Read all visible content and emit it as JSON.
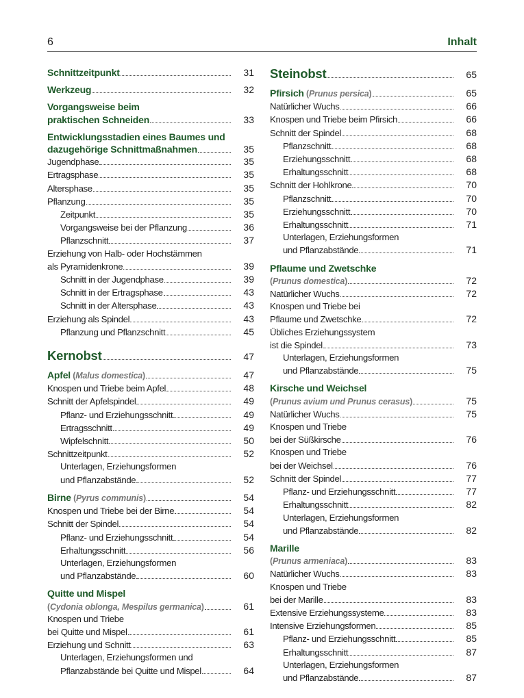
{
  "header": {
    "page_number": "6",
    "title": "Inhalt"
  },
  "colors": {
    "accent": "#1f5a2a",
    "latin": "#777777"
  },
  "columns": [
    [
      {
        "t": "h2",
        "lines": [
          "Schnittzeitpunkt"
        ],
        "p": "31"
      },
      {
        "t": "h2",
        "lines": [
          "Werkzeug"
        ],
        "p": "32"
      },
      {
        "t": "h2",
        "lines": [
          "Vorgangsweise beim",
          "praktischen Schneiden"
        ],
        "p": "33"
      },
      {
        "t": "h2",
        "lines": [
          "Entwicklungsstadien eines Baumes und",
          "dazugehörige Schnittmaßnahmen"
        ],
        "p": "35"
      },
      {
        "t": "n",
        "lines": [
          "Jugendphase"
        ],
        "p": "35"
      },
      {
        "t": "n",
        "lines": [
          "Ertragsphase"
        ],
        "p": "35"
      },
      {
        "t": "n",
        "lines": [
          "Altersphase"
        ],
        "p": "35"
      },
      {
        "t": "n",
        "lines": [
          "Pflanzung"
        ],
        "p": "35"
      },
      {
        "t": "i",
        "lines": [
          "Zeitpunkt"
        ],
        "p": "35"
      },
      {
        "t": "i",
        "lines": [
          "Vorgangsweise bei der Pflanzung"
        ],
        "p": "36"
      },
      {
        "t": "i",
        "lines": [
          "Pflanzschnitt"
        ],
        "p": "37"
      },
      {
        "t": "n",
        "lines": [
          "Erziehung von Halb- oder Hochstämmen",
          "als Pyramidenkrone"
        ],
        "p": "39"
      },
      {
        "t": "i",
        "lines": [
          "Schnitt in der Jugendphase"
        ],
        "p": "39"
      },
      {
        "t": "i",
        "lines": [
          "Schnitt in der Ertragsphase"
        ],
        "p": "43"
      },
      {
        "t": "i",
        "lines": [
          "Schnitt in der Altersphase"
        ],
        "p": "43"
      },
      {
        "t": "n",
        "lines": [
          "Erziehung als Spindel"
        ],
        "p": "43"
      },
      {
        "t": "i",
        "lines": [
          "Pflanzung und Pflanzschnitt"
        ],
        "p": "45"
      },
      {
        "t": "h1",
        "lines": [
          "Kernobst"
        ],
        "p": "47"
      },
      {
        "t": "h2",
        "lines": [
          "Apfel"
        ],
        "latin": "Malus domestica",
        "p": "47"
      },
      {
        "t": "n",
        "lines": [
          "Knospen und Triebe beim Apfel"
        ],
        "p": "48"
      },
      {
        "t": "n",
        "lines": [
          "Schnitt der Apfelspindel"
        ],
        "p": "49"
      },
      {
        "t": "i",
        "lines": [
          "Pflanz- und Erziehungsschnitt"
        ],
        "p": "49"
      },
      {
        "t": "i",
        "lines": [
          "Ertragsschnitt"
        ],
        "p": "49"
      },
      {
        "t": "i",
        "lines": [
          "Wipfelschnitt"
        ],
        "p": "50"
      },
      {
        "t": "n",
        "lines": [
          "Schnittzeitpunkt"
        ],
        "p": "52"
      },
      {
        "t": "i",
        "lines": [
          "Unterlagen, Erziehungsformen",
          "und Pflanzabstände"
        ],
        "p": "52"
      },
      {
        "t": "h2",
        "lines": [
          "Birne"
        ],
        "latin": "Pyrus communis",
        "p": "54"
      },
      {
        "t": "n",
        "lines": [
          "Knospen und Triebe bei der Birne"
        ],
        "p": "54"
      },
      {
        "t": "n",
        "lines": [
          "Schnitt der Spindel"
        ],
        "p": "54"
      },
      {
        "t": "i",
        "lines": [
          "Pflanz- und Erziehungsschnitt"
        ],
        "p": "54"
      },
      {
        "t": "i",
        "lines": [
          "Erhaltungsschnitt"
        ],
        "p": "56"
      },
      {
        "t": "i",
        "lines": [
          "Unterlagen, Erziehungsformen",
          "und Pflanzabstände"
        ],
        "p": "60"
      },
      {
        "t": "h2",
        "lines": [
          "Quitte und Mispel"
        ]
      },
      {
        "t": "l",
        "lines": [],
        "latin": "Cydonia oblonga, Mespilus germanica",
        "p": "61"
      },
      {
        "t": "n",
        "lines": [
          "Knospen und Triebe",
          "bei Quitte und Mispel"
        ],
        "p": "61"
      },
      {
        "t": "n",
        "lines": [
          "Erziehung und Schnitt"
        ],
        "p": "63"
      },
      {
        "t": "i",
        "lines": [
          "Unterlagen, Erziehungsformen und",
          "Pflanzabstände bei Quitte und Mispel"
        ],
        "p": "64"
      }
    ],
    [
      {
        "t": "h1",
        "lines": [
          "Steinobst"
        ],
        "p": "65"
      },
      {
        "t": "h2",
        "lines": [
          "Pfirsich"
        ],
        "latin": "Prunus persica",
        "p": "65"
      },
      {
        "t": "n",
        "lines": [
          "Natürlicher Wuchs"
        ],
        "p": "66"
      },
      {
        "t": "n",
        "lines": [
          "Knospen und Triebe beim Pfirsich"
        ],
        "p": "66"
      },
      {
        "t": "n",
        "lines": [
          "Schnitt der Spindel"
        ],
        "p": "68"
      },
      {
        "t": "i",
        "lines": [
          "Pflanzschnitt"
        ],
        "p": "68"
      },
      {
        "t": "i",
        "lines": [
          "Erziehungsschnitt"
        ],
        "p": "68"
      },
      {
        "t": "i",
        "lines": [
          "Erhaltungsschnitt"
        ],
        "p": "68"
      },
      {
        "t": "n",
        "lines": [
          "Schnitt der Hohlkrone"
        ],
        "p": "70"
      },
      {
        "t": "i",
        "lines": [
          "Pflanzschnitt"
        ],
        "p": "70"
      },
      {
        "t": "i",
        "lines": [
          "Erziehungsschnitt"
        ],
        "p": "70"
      },
      {
        "t": "i",
        "lines": [
          "Erhaltungsschnitt"
        ],
        "p": "71"
      },
      {
        "t": "i",
        "lines": [
          "Unterlagen, Erziehungsformen",
          "und Pflanzabstände"
        ],
        "p": "71"
      },
      {
        "t": "h2",
        "lines": [
          "Pflaume und Zwetschke"
        ]
      },
      {
        "t": "l",
        "lines": [],
        "latin": "Prunus domestica",
        "p": "72"
      },
      {
        "t": "n",
        "lines": [
          "Natürlicher Wuchs"
        ],
        "p": "72"
      },
      {
        "t": "n",
        "lines": [
          "Knospen und Triebe bei",
          "Pflaume und Zwetschke"
        ],
        "p": "72"
      },
      {
        "t": "n",
        "lines": [
          "Übliches Erziehungssystem",
          "ist die Spindel"
        ],
        "p": "73"
      },
      {
        "t": "i",
        "lines": [
          "Unterlagen, Erziehungsformen",
          "und Pflanzabstände"
        ],
        "p": "75"
      },
      {
        "t": "h2",
        "lines": [
          "Kirsche und Weichsel"
        ]
      },
      {
        "t": "l",
        "lines": [],
        "latin": "Prunus avium und Prunus cerasus",
        "p": "75"
      },
      {
        "t": "n",
        "lines": [
          "Natürlicher Wuchs"
        ],
        "p": "75"
      },
      {
        "t": "n",
        "lines": [
          "Knospen und Triebe",
          "bei der Süßkirsche"
        ],
        "p": "76"
      },
      {
        "t": "n",
        "lines": [
          "Knospen und Triebe",
          "bei der Weichsel"
        ],
        "p": "76"
      },
      {
        "t": "n",
        "lines": [
          "Schnitt der Spindel"
        ],
        "p": "77"
      },
      {
        "t": "i",
        "lines": [
          "Pflanz- und Erziehungsschnitt"
        ],
        "p": "77"
      },
      {
        "t": "i",
        "lines": [
          "Erhaltungsschnitt"
        ],
        "p": "82"
      },
      {
        "t": "i",
        "lines": [
          "Unterlagen, Erziehungsformen",
          "und Pflanzabstände"
        ],
        "p": "82"
      },
      {
        "t": "h2",
        "lines": [
          "Marille"
        ]
      },
      {
        "t": "l",
        "lines": [],
        "latin": "Prunus armeniaca",
        "p": "83"
      },
      {
        "t": "n",
        "lines": [
          "Natürlicher Wuchs"
        ],
        "p": "83"
      },
      {
        "t": "n",
        "lines": [
          "Knospen und Triebe",
          "bei der Marille"
        ],
        "p": "83"
      },
      {
        "t": "n",
        "lines": [
          "Extensive Erziehungssysteme"
        ],
        "p": "83"
      },
      {
        "t": "n",
        "lines": [
          "Intensive Erziehungsformen"
        ],
        "p": "85"
      },
      {
        "t": "i",
        "lines": [
          "Pflanz- und Erziehungsschnitt"
        ],
        "p": "85"
      },
      {
        "t": "i",
        "lines": [
          "Erhaltungsschnitt"
        ],
        "p": "87"
      },
      {
        "t": "i",
        "lines": [
          "Unterlagen, Erziehungsformen",
          "und Pflanzabstände"
        ],
        "p": "87"
      }
    ]
  ]
}
